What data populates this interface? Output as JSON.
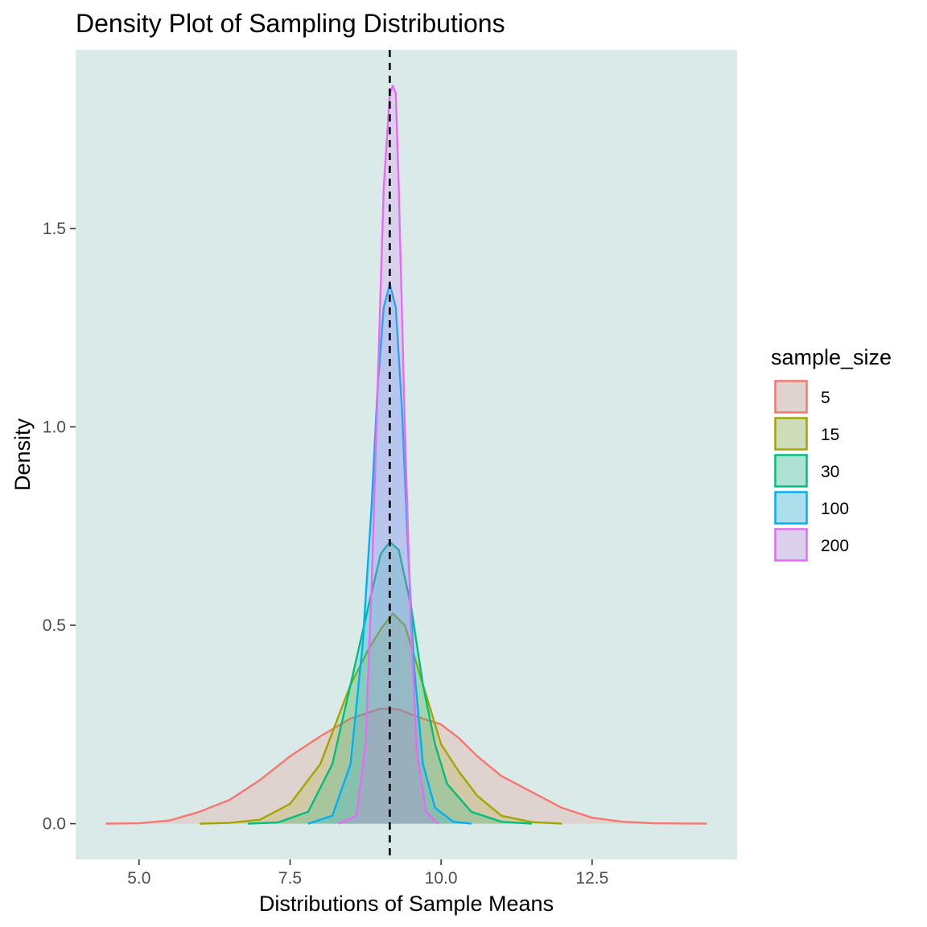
{
  "chart_data": {
    "type": "area",
    "title": "Density Plot of Sampling Distributions",
    "xlabel": "Distributions of Sample Means",
    "ylabel": "Density",
    "xlim": [
      3.95,
      14.9
    ],
    "ylim": [
      -0.09,
      1.95
    ],
    "x_ticks": [
      5.0,
      7.5,
      10.0,
      12.5
    ],
    "x_tick_labels": [
      "5.0",
      "7.5",
      "10.0",
      "12.5"
    ],
    "y_ticks": [
      0.0,
      0.5,
      1.0,
      1.5
    ],
    "y_tick_labels": [
      "0.0",
      "0.5",
      "1.0",
      "1.5"
    ],
    "grid": false,
    "panel_background": "#d9eae9",
    "reference_line": {
      "x": 9.15,
      "style": "dashed",
      "color": "#000000"
    },
    "legend": {
      "title": "sample_size",
      "position": "right"
    },
    "series": [
      {
        "name": "5",
        "color": "#f8766d",
        "points": [
          [
            4.45,
            0
          ],
          [
            5.0,
            0.001
          ],
          [
            5.5,
            0.008
          ],
          [
            6.0,
            0.03
          ],
          [
            6.5,
            0.06
          ],
          [
            7.0,
            0.11
          ],
          [
            7.5,
            0.17
          ],
          [
            8.0,
            0.22
          ],
          [
            8.5,
            0.265
          ],
          [
            9.0,
            0.29
          ],
          [
            9.3,
            0.288
          ],
          [
            9.6,
            0.27
          ],
          [
            10.0,
            0.25
          ],
          [
            10.3,
            0.215
          ],
          [
            10.6,
            0.17
          ],
          [
            11.0,
            0.12
          ],
          [
            11.5,
            0.08
          ],
          [
            12.0,
            0.04
          ],
          [
            12.5,
            0.015
          ],
          [
            13.0,
            0.005
          ],
          [
            13.5,
            0.001
          ],
          [
            14.4,
            0
          ]
        ]
      },
      {
        "name": "15",
        "color": "#a3a500",
        "points": [
          [
            6.0,
            0
          ],
          [
            6.5,
            0.002
          ],
          [
            7.0,
            0.01
          ],
          [
            7.5,
            0.05
          ],
          [
            8.0,
            0.15
          ],
          [
            8.5,
            0.35
          ],
          [
            8.8,
            0.44
          ],
          [
            9.0,
            0.49
          ],
          [
            9.2,
            0.53
          ],
          [
            9.4,
            0.5
          ],
          [
            9.6,
            0.4
          ],
          [
            9.8,
            0.3
          ],
          [
            10.0,
            0.2
          ],
          [
            10.3,
            0.13
          ],
          [
            10.6,
            0.07
          ],
          [
            11.0,
            0.02
          ],
          [
            11.5,
            0.004
          ],
          [
            12.0,
            0
          ]
        ]
      },
      {
        "name": "30",
        "color": "#00bf7d",
        "points": [
          [
            6.8,
            0
          ],
          [
            7.3,
            0.003
          ],
          [
            7.8,
            0.03
          ],
          [
            8.2,
            0.15
          ],
          [
            8.5,
            0.35
          ],
          [
            8.8,
            0.55
          ],
          [
            9.0,
            0.68
          ],
          [
            9.15,
            0.71
          ],
          [
            9.3,
            0.69
          ],
          [
            9.5,
            0.55
          ],
          [
            9.7,
            0.35
          ],
          [
            9.9,
            0.2
          ],
          [
            10.1,
            0.1
          ],
          [
            10.5,
            0.03
          ],
          [
            11.0,
            0.005
          ],
          [
            11.5,
            0
          ]
        ]
      },
      {
        "name": "100",
        "color": "#00b0f6",
        "points": [
          [
            7.8,
            0
          ],
          [
            8.2,
            0.02
          ],
          [
            8.5,
            0.15
          ],
          [
            8.7,
            0.45
          ],
          [
            8.85,
            0.8
          ],
          [
            8.95,
            1.1
          ],
          [
            9.05,
            1.3
          ],
          [
            9.15,
            1.36
          ],
          [
            9.25,
            1.3
          ],
          [
            9.35,
            1.05
          ],
          [
            9.45,
            0.7
          ],
          [
            9.55,
            0.4
          ],
          [
            9.7,
            0.15
          ],
          [
            9.9,
            0.04
          ],
          [
            10.2,
            0.005
          ],
          [
            10.5,
            0
          ]
        ]
      },
      {
        "name": "200",
        "color": "#e76bf3",
        "points": [
          [
            8.3,
            0
          ],
          [
            8.6,
            0.02
          ],
          [
            8.75,
            0.2
          ],
          [
            8.85,
            0.6
          ],
          [
            8.95,
            1.1
          ],
          [
            9.05,
            1.6
          ],
          [
            9.15,
            1.84
          ],
          [
            9.2,
            1.86
          ],
          [
            9.25,
            1.84
          ],
          [
            9.3,
            1.6
          ],
          [
            9.4,
            1.0
          ],
          [
            9.5,
            0.5
          ],
          [
            9.6,
            0.18
          ],
          [
            9.75,
            0.03
          ],
          [
            9.95,
            0
          ]
        ]
      }
    ]
  }
}
